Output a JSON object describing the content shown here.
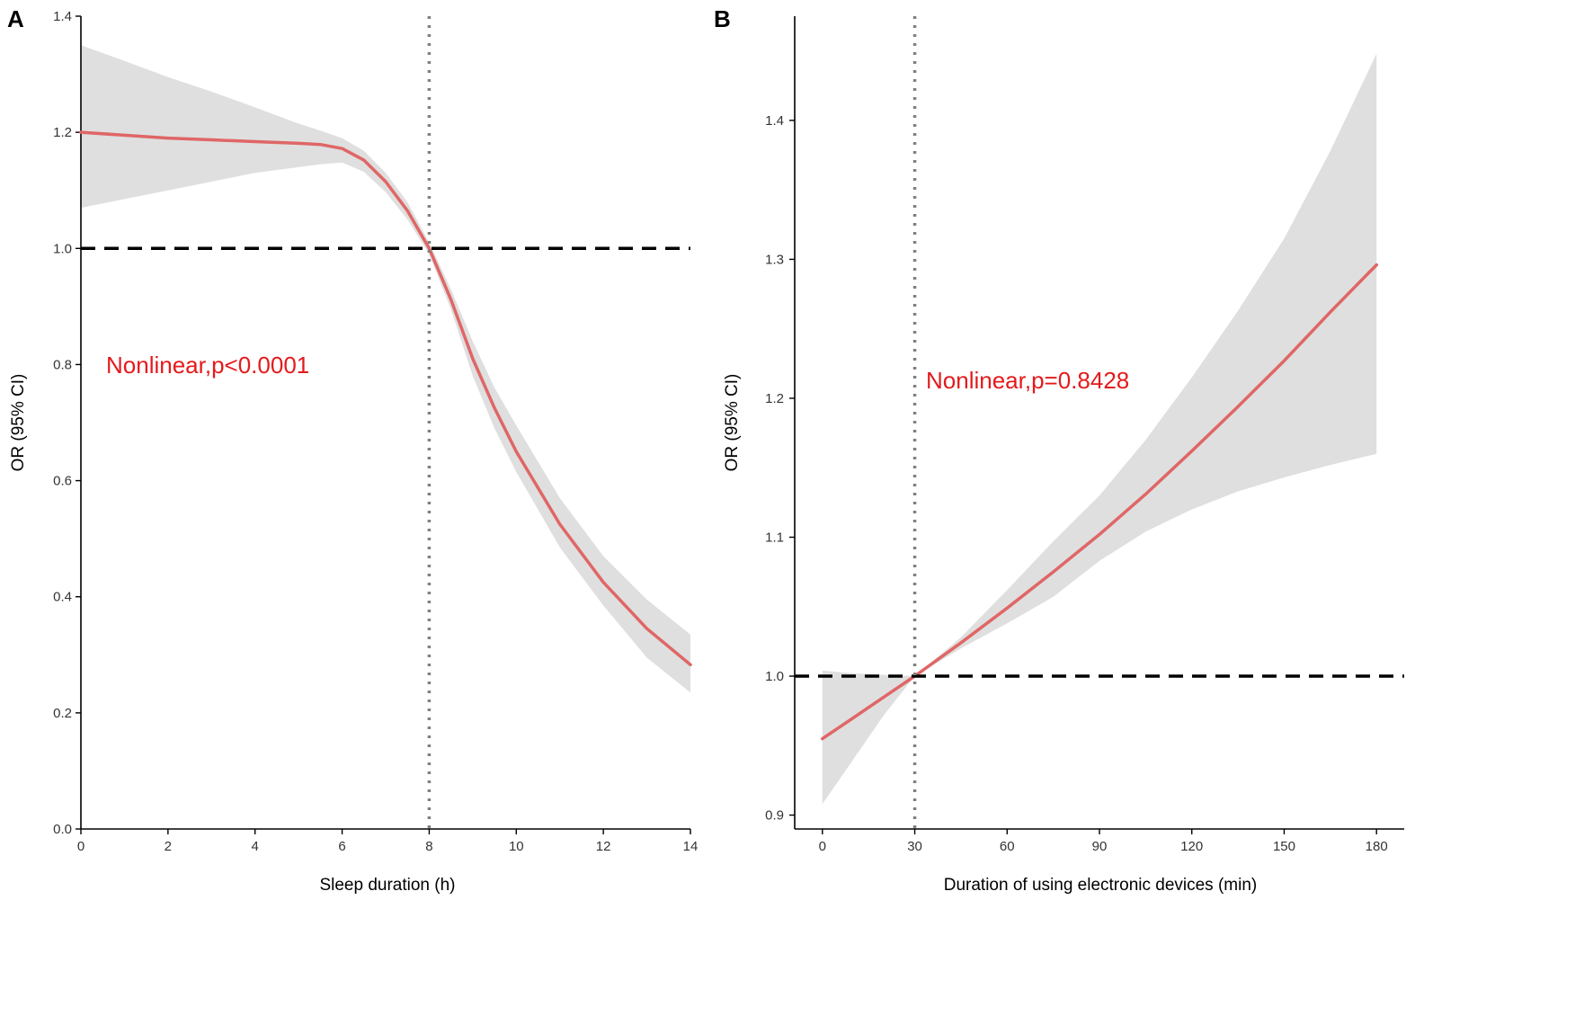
{
  "chart_data": [
    {
      "panel_label": "A",
      "type": "line",
      "xlabel": "Sleep duration (h)",
      "ylabel": "OR (95% CI)",
      "xlim": [
        0,
        14
      ],
      "ylim": [
        0,
        1.4
      ],
      "xticks": [
        0,
        2,
        4,
        6,
        8,
        10,
        12,
        14
      ],
      "yticks": [
        "0.0",
        "0.2",
        "0.4",
        "0.6",
        "0.8",
        "1.0",
        "1.2",
        "1.4"
      ],
      "reference_y": 1.0,
      "reference_x": 8,
      "annotation": "Nonlinear,p<0.0001",
      "grid": false,
      "series": [
        {
          "name": "OR",
          "x": [
            0,
            1,
            2,
            3,
            4,
            5,
            5.5,
            6,
            6.5,
            7,
            7.5,
            8,
            8.5,
            9,
            9.5,
            10,
            11,
            12,
            13,
            14
          ],
          "y": [
            1.2,
            1.195,
            1.19,
            1.187,
            1.184,
            1.181,
            1.179,
            1.172,
            1.152,
            1.115,
            1.065,
            1.0,
            0.912,
            0.81,
            0.725,
            0.65,
            0.525,
            0.425,
            0.345,
            0.283
          ],
          "lower": [
            1.07,
            1.085,
            1.1,
            1.115,
            1.13,
            1.14,
            1.145,
            1.148,
            1.132,
            1.097,
            1.05,
            0.99,
            0.895,
            0.78,
            0.69,
            0.615,
            0.485,
            0.385,
            0.295,
            0.235
          ],
          "upper": [
            1.35,
            1.323,
            1.295,
            1.27,
            1.243,
            1.215,
            1.203,
            1.19,
            1.168,
            1.13,
            1.08,
            1.01,
            0.93,
            0.84,
            0.76,
            0.695,
            0.57,
            0.47,
            0.395,
            0.335
          ]
        }
      ],
      "colors": {
        "line": "#e06666",
        "band": "#dfdfdf",
        "annotation": "#e41a1c",
        "reference": "#000000",
        "vline": "#808080"
      }
    },
    {
      "panel_label": "B",
      "type": "line",
      "xlabel": "Duration of using electronic devices (min)",
      "ylabel": "OR (95% CI)",
      "xlim": [
        -9,
        189
      ],
      "ylim": [
        0.89,
        1.475
      ],
      "xticks": [
        0,
        30,
        60,
        90,
        120,
        150,
        180
      ],
      "yticks": [
        "0.9",
        "1.0",
        "1.1",
        "1.2",
        "1.3",
        "1.4"
      ],
      "reference_y": 1.0,
      "reference_x": 30,
      "annotation": "Nonlinear,p=0.8428",
      "grid": false,
      "series": [
        {
          "name": "OR",
          "x": [
            0,
            10,
            20,
            30,
            45,
            60,
            75,
            90,
            105,
            120,
            135,
            150,
            165,
            180
          ],
          "y": [
            0.955,
            0.97,
            0.985,
            1.0,
            1.024,
            1.049,
            1.075,
            1.102,
            1.131,
            1.162,
            1.194,
            1.227,
            1.262,
            1.296
          ],
          "lower": [
            0.908,
            0.94,
            0.972,
            1.0,
            1.02,
            1.038,
            1.057,
            1.083,
            1.104,
            1.12,
            1.133,
            1.143,
            1.152,
            1.16
          ],
          "upper": [
            1.004,
            1.002,
            1.001,
            1.0,
            1.028,
            1.062,
            1.097,
            1.13,
            1.17,
            1.215,
            1.263,
            1.315,
            1.378,
            1.448
          ]
        }
      ],
      "colors": {
        "line": "#e06666",
        "band": "#dfdfdf",
        "annotation": "#e41a1c",
        "reference": "#000000",
        "vline": "#808080"
      }
    }
  ]
}
